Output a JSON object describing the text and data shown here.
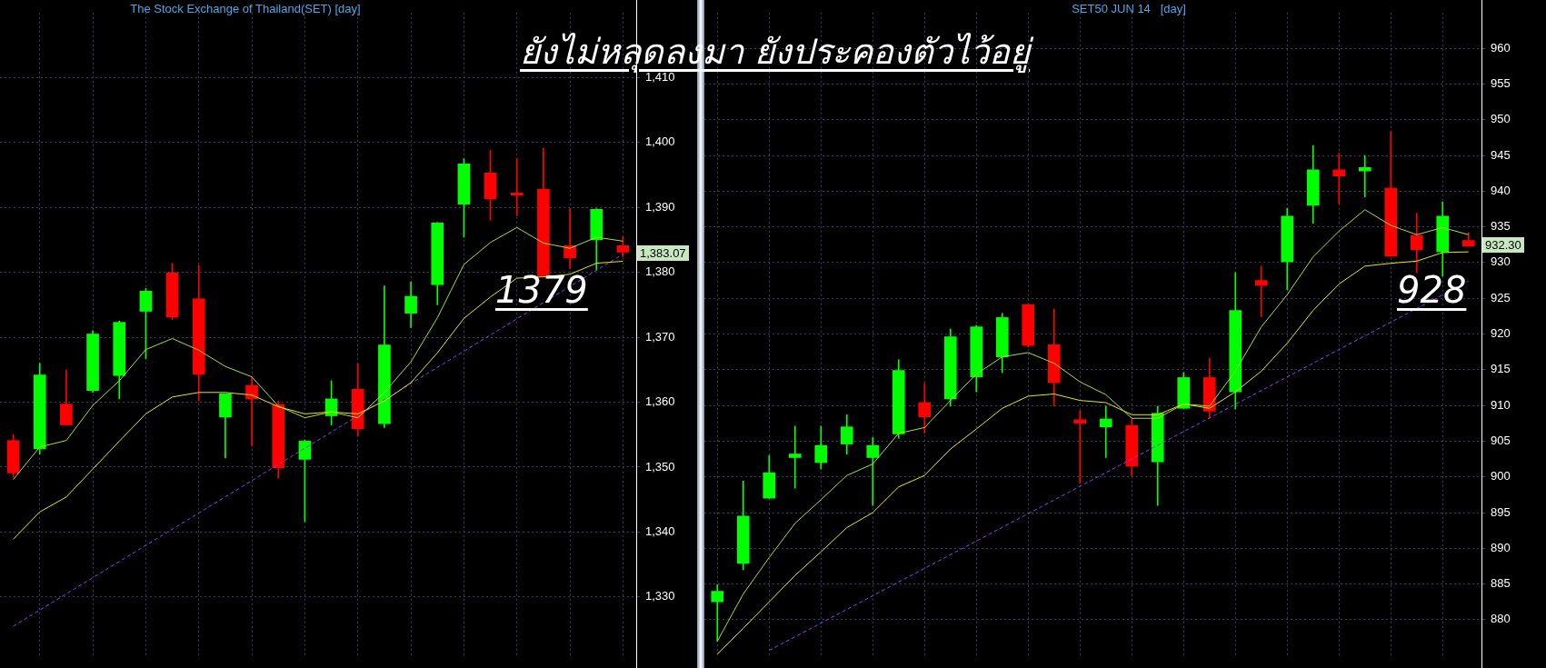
{
  "chart_data": [
    {
      "type": "candlestick",
      "title": "The Stock Exchange of Thailand(SET) [day]",
      "categories": [
        null,
        null,
        null,
        null,
        null,
        null,
        null,
        null,
        null,
        null,
        null,
        null,
        null,
        null,
        null,
        null,
        null,
        null,
        null,
        null,
        null,
        null,
        null,
        null
      ],
      "ohlc": [
        [
          1354.1,
          1355,
          1348.5,
          1349.1
        ],
        [
          1352.8,
          1366,
          1352,
          1364.2
        ],
        [
          1359.7,
          1365,
          1356.5,
          1356.5
        ],
        [
          1361.8,
          1371,
          1361.5,
          1370.5
        ],
        [
          1364.1,
          1372.5,
          1360.5,
          1372.3
        ],
        [
          1374,
          1377.5,
          1366.7,
          1377.1
        ],
        [
          1379.9,
          1381.4,
          1372.7,
          1373.1
        ],
        [
          1375.9,
          1381.1,
          1360.2,
          1364.3
        ],
        [
          1357.7,
          1361.3,
          1351.4,
          1361.3
        ],
        [
          1362.6,
          1363.9,
          1353.3,
          1360.5
        ],
        [
          1359.6,
          1360.2,
          1348.3,
          1349.9
        ],
        [
          1351.2,
          1354.2,
          1341.6,
          1354
        ],
        [
          1357.9,
          1363.3,
          1356.5,
          1360.5
        ],
        [
          1362,
          1365.9,
          1354.8,
          1355.9
        ],
        [
          1356.7,
          1377.9,
          1356.1,
          1368.8
        ],
        [
          1373.7,
          1378.5,
          1371.5,
          1376.3
        ],
        [
          1378.1,
          1387.7,
          1375,
          1387.6
        ],
        [
          1390.5,
          1397.5,
          1385.4,
          1396.7
        ],
        [
          1395.3,
          1398.8,
          1388,
          1391.3
        ],
        [
          1392.2,
          1397.5,
          1388.7,
          1391.9
        ],
        [
          1392.8,
          1399.1,
          1379.4,
          1379.4
        ],
        [
          1384.1,
          1389.7,
          1380.6,
          1382.2
        ],
        [
          1385,
          1389.8,
          1380.3,
          1389.7
        ],
        [
          1384.1,
          1385.5,
          1382.4,
          1383.1
        ]
      ],
      "colors": [
        "#ff0000",
        "#00ff00",
        "#ff0000",
        "#00ff00",
        "#00ff00",
        "#00ff00",
        "#ff0000",
        "#ff0000",
        "#00ff00",
        "#ff0000",
        "#ff0000",
        "#00ff00",
        "#00ff00",
        "#ff0000",
        "#00ff00",
        "#00ff00",
        "#00ff00",
        "#00ff00",
        "#ff0000",
        "#ff0000",
        "#ff0000",
        "#ff0000",
        "#00ff00",
        "#ff0000"
      ],
      "series": [
        {
          "type": "line",
          "color": "#a8e020",
          "values": [
            1348.1,
            1353.1,
            1354.1,
            1359.5,
            1363.3,
            1368.1,
            1369.8,
            1368,
            1365.5,
            1363.9,
            1359.4,
            1357.6,
            1358.5,
            1357.6,
            1361.5,
            1366.2,
            1373,
            1381.2,
            1384.6,
            1386.9,
            1384.5,
            1383.7,
            1385.4,
            1384.8
          ]
        },
        {
          "type": "line",
          "color": "#e8e800",
          "values": [
            1338.9,
            1343.1,
            1345.4,
            1349.7,
            1354,
            1358.2,
            1360.8,
            1361.5,
            1361.5,
            1361.1,
            1359.3,
            1358.2,
            1358.5,
            1358.2,
            1360.2,
            1363,
            1367.6,
            1372.9,
            1376.2,
            1379.1,
            1379.3,
            1379.7,
            1381.4,
            1381.7
          ]
        },
        {
          "type": "line",
          "color": "#9933ff",
          "line_style": "dashed",
          "values": [
            1325.5,
            null,
            null,
            null,
            null,
            null,
            null,
            null,
            null,
            null,
            null,
            null,
            null,
            null,
            null,
            null,
            null,
            null,
            null,
            null,
            null,
            null,
            null,
            1382.8
          ]
        }
      ],
      "ylim": [
        1321,
        1420
      ],
      "yticks": [
        {
          "value": 1330,
          "label": "1,330"
        },
        {
          "value": 1340,
          "label": "1,340"
        },
        {
          "value": 1350,
          "label": "1,350"
        },
        {
          "value": 1360,
          "label": "1,360"
        },
        {
          "value": 1370,
          "label": "1,370"
        },
        {
          "value": 1380,
          "label": "1,380"
        },
        {
          "value": 1390,
          "label": "1,390"
        },
        {
          "value": 1400,
          "label": "1,400"
        },
        {
          "value": 1410,
          "label": "1,410"
        }
      ],
      "grid": true,
      "marker": "none",
      "tick_labels": "y",
      "annotations": [
        "ยังไม่หลุดลงมา ยังประคองตัวไว้อยู่",
        "1379",
        "1,383.07"
      ]
    },
    {
      "type": "candlestick",
      "title": "SET50 JUN 14   [day]",
      "categories": [
        null,
        null,
        null,
        null,
        null,
        null,
        null,
        null,
        null,
        null,
        null,
        null,
        null,
        null,
        null,
        null,
        null,
        null,
        null,
        null,
        null,
        null,
        null,
        null,
        null,
        null,
        null,
        null,
        null,
        null
      ],
      "ohlc": [
        [
          882.5,
          884.9,
          877,
          884
        ],
        [
          887.9,
          899.4,
          887,
          894.5
        ],
        [
          897,
          903,
          897,
          900.6
        ],
        [
          902.7,
          907.1,
          898.4,
          903.2
        ],
        [
          902,
          907.1,
          901.1,
          904.4
        ],
        [
          904.6,
          908.7,
          903.2,
          907
        ],
        [
          902.7,
          905.5,
          896,
          904.4
        ],
        [
          906,
          916.4,
          905.4,
          914.9
        ],
        [
          910.4,
          913.1,
          906.1,
          908.4
        ],
        [
          910.9,
          920.7,
          909.9,
          919.6
        ],
        [
          914,
          921.2,
          911.9,
          921
        ],
        [
          916.8,
          922.9,
          914.6,
          922.3
        ],
        [
          924.1,
          924.2,
          918.2,
          918.4
        ],
        [
          918.5,
          923.5,
          909.9,
          913.2
        ],
        [
          908,
          909.3,
          899.1,
          907.5
        ],
        [
          907,
          909.9,
          902.7,
          908.1
        ],
        [
          907.2,
          908.1,
          900.1,
          901.5
        ],
        [
          902.1,
          909.9,
          896,
          908.9
        ],
        [
          909.6,
          914.6,
          909.6,
          913.9
        ],
        [
          913.9,
          916.6,
          908.2,
          909.2
        ],
        [
          911.9,
          928.6,
          909.5,
          923.3
        ],
        [
          927.5,
          929.5,
          922.4,
          926.8
        ],
        [
          930.1,
          937.6,
          926.2,
          936.5
        ],
        [
          938,
          946.4,
          935.5,
          943
        ],
        [
          943,
          945.3,
          938.2,
          942.1
        ],
        [
          942.8,
          945,
          939.2,
          943.3
        ],
        [
          940.4,
          948.3,
          930.9,
          930.9
        ],
        [
          933.8,
          936.9,
          928.6,
          931.8
        ],
        [
          931.5,
          938.5,
          928.1,
          936.5
        ],
        [
          933.1,
          934.2,
          932.3,
          932.3
        ]
      ],
      "colors": [
        "#00ff00",
        "#00ff00",
        "#00ff00",
        "#00ff00",
        "#00ff00",
        "#00ff00",
        "#00ff00",
        "#00ff00",
        "#ff0000",
        "#00ff00",
        "#00ff00",
        "#00ff00",
        "#ff0000",
        "#ff0000",
        "#ff0000",
        "#00ff00",
        "#ff0000",
        "#00ff00",
        "#00ff00",
        "#ff0000",
        "#00ff00",
        "#ff0000",
        "#00ff00",
        "#00ff00",
        "#ff0000",
        "#00ff00",
        "#ff0000",
        "#ff0000",
        "#00ff00",
        "#ff0000"
      ],
      "series": [
        {
          "type": "line",
          "color": "#a8e020",
          "values": [
            877,
            883.6,
            888.7,
            893.5,
            896.8,
            900.2,
            901.8,
            906.1,
            906.9,
            910.7,
            914.4,
            916.8,
            917.4,
            915.9,
            913.3,
            911.5,
            908.2,
            908.2,
            910.2,
            909.9,
            914.8,
            921,
            925.5,
            930.8,
            934.4,
            937.4,
            935.2,
            933.9,
            934.9,
            933.9
          ]
        },
        {
          "type": "line",
          "color": "#e8e800",
          "values": [
            875.2,
            878.8,
            882.5,
            886.2,
            889.5,
            892.9,
            895,
            898.6,
            900.2,
            903.9,
            906.7,
            909.6,
            911.3,
            911.6,
            910.7,
            910.4,
            908.7,
            908.7,
            910.2,
            909.6,
            911.9,
            914.8,
            918.7,
            923.3,
            927,
            929.5,
            929.9,
            930.2,
            931.4,
            931.5
          ]
        },
        {
          "type": "line",
          "color": "#9933ff",
          "line_style": "dashed",
          "values": [
            null,
            null,
            875.7,
            null,
            null,
            null,
            null,
            null,
            null,
            null,
            null,
            null,
            null,
            null,
            null,
            null,
            null,
            null,
            null,
            null,
            null,
            null,
            null,
            null,
            null,
            null,
            null,
            null,
            null,
            927.4
          ]
        }
      ],
      "ylim": [
        875,
        965
      ],
      "yticks": [
        880,
        885,
        890,
        895,
        900,
        905,
        910,
        915,
        920,
        925,
        930,
        935,
        940,
        945,
        950,
        955,
        960
      ],
      "grid": true,
      "marker": "none",
      "tick_labels": "y",
      "annotations": [
        "928",
        "932.30"
      ]
    }
  ]
}
